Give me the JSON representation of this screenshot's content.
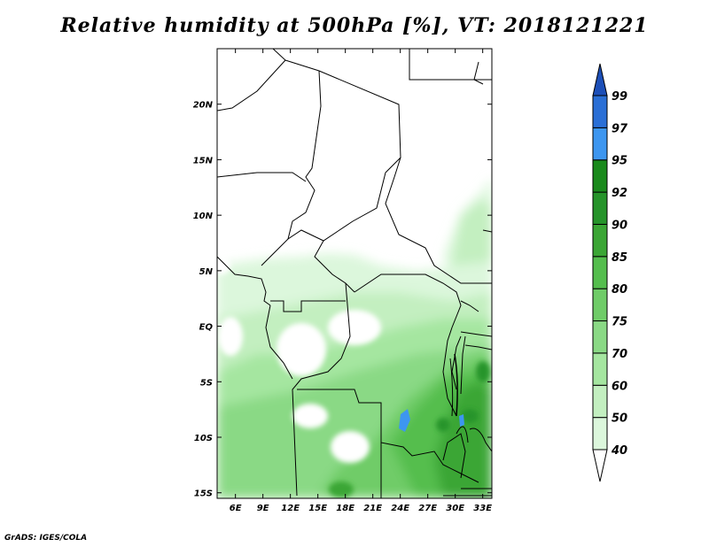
{
  "title": "Relative humidity at 500hPa [%], VT: 2018121221",
  "credit": "GrADS: IGES/COLA",
  "chart_data": {
    "type": "heatmap",
    "title": "Relative humidity at 500hPa [%], VT: 2018121221",
    "x_ticks": [
      "6E",
      "9E",
      "12E",
      "15E",
      "18E",
      "21E",
      "24E",
      "27E",
      "30E",
      "33E"
    ],
    "x_values": [
      6,
      9,
      12,
      15,
      18,
      21,
      24,
      27,
      30,
      33
    ],
    "y_ticks": [
      "20N",
      "15N",
      "10N",
      "5N",
      "EQ",
      "5S",
      "10S",
      "15S"
    ],
    "y_values": [
      20,
      15,
      10,
      5,
      0,
      -5,
      -10,
      -15
    ],
    "xlim": [
      4,
      34
    ],
    "ylim": [
      -15.5,
      25
    ],
    "colorbar": {
      "labels": [
        "40",
        "50",
        "60",
        "70",
        "75",
        "80",
        "85",
        "90",
        "92",
        "95",
        "97",
        "99"
      ],
      "values": [
        40,
        50,
        60,
        70,
        75,
        80,
        85,
        90,
        92,
        95,
        97,
        99
      ],
      "colors": [
        "#ffffff",
        "#dcf7dc",
        "#c3efc0",
        "#a5e6a0",
        "#8ad985",
        "#6fcc68",
        "#55be4e",
        "#3ba635",
        "#26942a",
        "#1a8a1c",
        "#3d96f0",
        "#2a6fd6",
        "#1c4fb8"
      ]
    }
  }
}
